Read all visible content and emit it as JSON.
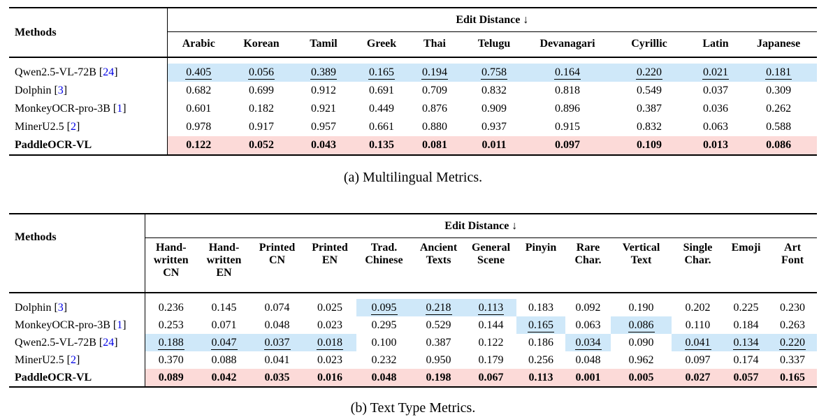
{
  "colors": {
    "second_best_bg": "#cfe8f9",
    "best_bg": "#fcdad8",
    "citation": "#0000e6"
  },
  "tables": [
    {
      "caption": "(a) Multilingual Metrics.",
      "corner_header": "Methods",
      "group_header": "Edit Distance ↓",
      "columns": [
        "Arabic",
        "Korean",
        "Tamil",
        "Greek",
        "Thai",
        "Telugu",
        "Devanagari",
        "Cyrillic",
        "Latin",
        "Japanese"
      ],
      "rows": [
        {
          "method": "Qwen2.5-VL-72B",
          "cite": "24",
          "best": false,
          "cells": [
            {
              "v": "0.405",
              "u": true,
              "h": true
            },
            {
              "v": "0.056",
              "u": true,
              "h": true
            },
            {
              "v": "0.389",
              "u": true,
              "h": true
            },
            {
              "v": "0.165",
              "u": true,
              "h": true
            },
            {
              "v": "0.194",
              "u": true,
              "h": true
            },
            {
              "v": "0.758",
              "u": true,
              "h": true
            },
            {
              "v": "0.164",
              "u": true,
              "h": true
            },
            {
              "v": "0.220",
              "u": true,
              "h": true
            },
            {
              "v": "0.021",
              "u": true,
              "h": true
            },
            {
              "v": "0.181",
              "u": true,
              "h": true
            }
          ]
        },
        {
          "method": "Dolphin",
          "cite": "3",
          "best": false,
          "cells": [
            {
              "v": "0.682"
            },
            {
              "v": "0.699"
            },
            {
              "v": "0.912"
            },
            {
              "v": "0.691"
            },
            {
              "v": "0.709"
            },
            {
              "v": "0.832"
            },
            {
              "v": "0.818"
            },
            {
              "v": "0.549"
            },
            {
              "v": "0.037"
            },
            {
              "v": "0.309"
            }
          ]
        },
        {
          "method": "MonkeyOCR-pro-3B",
          "cite": "1",
          "best": false,
          "cells": [
            {
              "v": "0.601"
            },
            {
              "v": "0.182"
            },
            {
              "v": "0.921"
            },
            {
              "v": "0.449"
            },
            {
              "v": "0.876"
            },
            {
              "v": "0.909"
            },
            {
              "v": "0.896"
            },
            {
              "v": "0.387"
            },
            {
              "v": "0.036"
            },
            {
              "v": "0.262"
            }
          ]
        },
        {
          "method": "MinerU2.5",
          "cite": "2",
          "best": false,
          "cells": [
            {
              "v": "0.978"
            },
            {
              "v": "0.917"
            },
            {
              "v": "0.957"
            },
            {
              "v": "0.661"
            },
            {
              "v": "0.880"
            },
            {
              "v": "0.937"
            },
            {
              "v": "0.915"
            },
            {
              "v": "0.832"
            },
            {
              "v": "0.063"
            },
            {
              "v": "0.588"
            }
          ]
        },
        {
          "method": "PaddleOCR-VL",
          "cite": null,
          "best": true,
          "cells": [
            {
              "v": "0.122"
            },
            {
              "v": "0.052"
            },
            {
              "v": "0.043"
            },
            {
              "v": "0.135"
            },
            {
              "v": "0.081"
            },
            {
              "v": "0.011"
            },
            {
              "v": "0.097"
            },
            {
              "v": "0.109"
            },
            {
              "v": "0.013"
            },
            {
              "v": "0.086"
            }
          ]
        }
      ]
    },
    {
      "caption": "(b) Text Type Metrics.",
      "corner_header": "Methods",
      "group_header": "Edit Distance ↓",
      "columns": [
        "Hand-\nwritten\nCN",
        "Hand-\nwritten\nEN",
        "Printed\nCN",
        "Printed\nEN",
        "Trad.\nChinese",
        "Ancient\nTexts",
        "General\nScene",
        "Pinyin",
        "Rare\nChar.",
        "Vertical\nText",
        "Single\nChar.",
        "Emoji",
        "Art\nFont"
      ],
      "rows": [
        {
          "method": "Dolphin",
          "cite": "3",
          "best": false,
          "cells": [
            {
              "v": "0.236"
            },
            {
              "v": "0.145"
            },
            {
              "v": "0.074"
            },
            {
              "v": "0.025"
            },
            {
              "v": "0.095",
              "u": true,
              "h": true
            },
            {
              "v": "0.218",
              "u": true,
              "h": true
            },
            {
              "v": "0.113",
              "u": true,
              "h": true
            },
            {
              "v": "0.183"
            },
            {
              "v": "0.092"
            },
            {
              "v": "0.190"
            },
            {
              "v": "0.202"
            },
            {
              "v": "0.225"
            },
            {
              "v": "0.230"
            }
          ]
        },
        {
          "method": "MonkeyOCR-pro-3B",
          "cite": "1",
          "best": false,
          "cells": [
            {
              "v": "0.253"
            },
            {
              "v": "0.071"
            },
            {
              "v": "0.048"
            },
            {
              "v": "0.023"
            },
            {
              "v": "0.295"
            },
            {
              "v": "0.529"
            },
            {
              "v": "0.144"
            },
            {
              "v": "0.165",
              "u": true,
              "h": true
            },
            {
              "v": "0.063"
            },
            {
              "v": "0.086",
              "u": true,
              "h": true
            },
            {
              "v": "0.110"
            },
            {
              "v": "0.184"
            },
            {
              "v": "0.263"
            }
          ]
        },
        {
          "method": "Qwen2.5-VL-72B",
          "cite": "24",
          "best": false,
          "cells": [
            {
              "v": "0.188",
              "u": true,
              "h": true
            },
            {
              "v": "0.047",
              "u": true,
              "h": true
            },
            {
              "v": "0.037",
              "u": true,
              "h": true
            },
            {
              "v": "0.018",
              "u": true,
              "h": true
            },
            {
              "v": "0.100"
            },
            {
              "v": "0.387"
            },
            {
              "v": "0.122"
            },
            {
              "v": "0.186"
            },
            {
              "v": "0.034",
              "u": true,
              "h": true
            },
            {
              "v": "0.090"
            },
            {
              "v": "0.041",
              "u": true,
              "h": true
            },
            {
              "v": "0.134",
              "u": true,
              "h": true
            },
            {
              "v": "0.220",
              "u": true,
              "h": true
            }
          ]
        },
        {
          "method": "MinerU2.5",
          "cite": "2",
          "best": false,
          "cells": [
            {
              "v": "0.370"
            },
            {
              "v": "0.088"
            },
            {
              "v": "0.041"
            },
            {
              "v": "0.023"
            },
            {
              "v": "0.232"
            },
            {
              "v": "0.950"
            },
            {
              "v": "0.179"
            },
            {
              "v": "0.256"
            },
            {
              "v": "0.048"
            },
            {
              "v": "0.962"
            },
            {
              "v": "0.097"
            },
            {
              "v": "0.174"
            },
            {
              "v": "0.337"
            }
          ]
        },
        {
          "method": "PaddleOCR-VL",
          "cite": null,
          "best": true,
          "cells": [
            {
              "v": "0.089"
            },
            {
              "v": "0.042"
            },
            {
              "v": "0.035"
            },
            {
              "v": "0.016"
            },
            {
              "v": "0.048"
            },
            {
              "v": "0.198"
            },
            {
              "v": "0.067"
            },
            {
              "v": "0.113"
            },
            {
              "v": "0.001"
            },
            {
              "v": "0.005"
            },
            {
              "v": "0.027"
            },
            {
              "v": "0.057"
            },
            {
              "v": "0.165"
            }
          ]
        }
      ]
    }
  ]
}
